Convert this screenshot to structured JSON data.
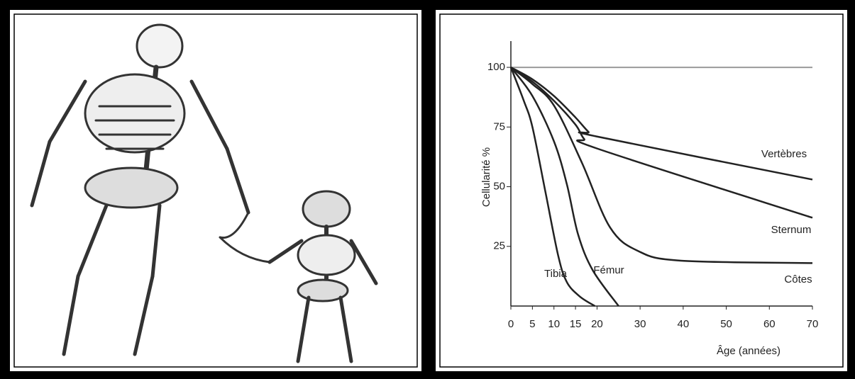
{
  "chart_data": {
    "type": "line",
    "x_label": "Âge (années)",
    "y_label": "Cellularité %",
    "xlim": [
      0,
      70
    ],
    "xticks": [
      0,
      5,
      10,
      15,
      20,
      30,
      40,
      50,
      60,
      70
    ],
    "ylim": [
      0,
      111
    ],
    "yticks": [
      25,
      50,
      75,
      100
    ],
    "color": "#222222",
    "series": [
      {
        "x": [
          0,
          70
        ],
        "values": [
          100,
          100
        ],
        "color": "#9a9a9a"
      },
      {
        "name": "Vertèbres",
        "x": [
          0,
          5,
          10,
          15,
          18,
          20,
          70
        ],
        "values": [
          100,
          95,
          88,
          79,
          73,
          71,
          53
        ],
        "color": "#222222"
      },
      {
        "name": "Sternum",
        "x": [
          0,
          5,
          10,
          15,
          17,
          20,
          70
        ],
        "values": [
          100,
          94,
          86,
          76,
          70,
          66,
          37
        ],
        "color": "#222222"
      },
      {
        "name": "Côtes",
        "x": [
          0,
          5,
          10,
          16.5,
          23,
          29.6,
          39.5,
          70
        ],
        "values": [
          100,
          93,
          84,
          60,
          33,
          23,
          19,
          18
        ],
        "color": "#222222"
      },
      {
        "name": "Fémur",
        "x": [
          0,
          5,
          10,
          13,
          15.6,
          19,
          25
        ],
        "values": [
          100,
          88,
          69,
          51,
          30,
          15,
          0
        ],
        "color": "#222222"
      },
      {
        "name": "Tibia",
        "x": [
          0,
          3,
          5,
          8,
          11,
          13,
          16,
          19.5
        ],
        "values": [
          100,
          86,
          75,
          48,
          21,
          10,
          4,
          0
        ],
        "color": "#222222"
      }
    ]
  }
}
